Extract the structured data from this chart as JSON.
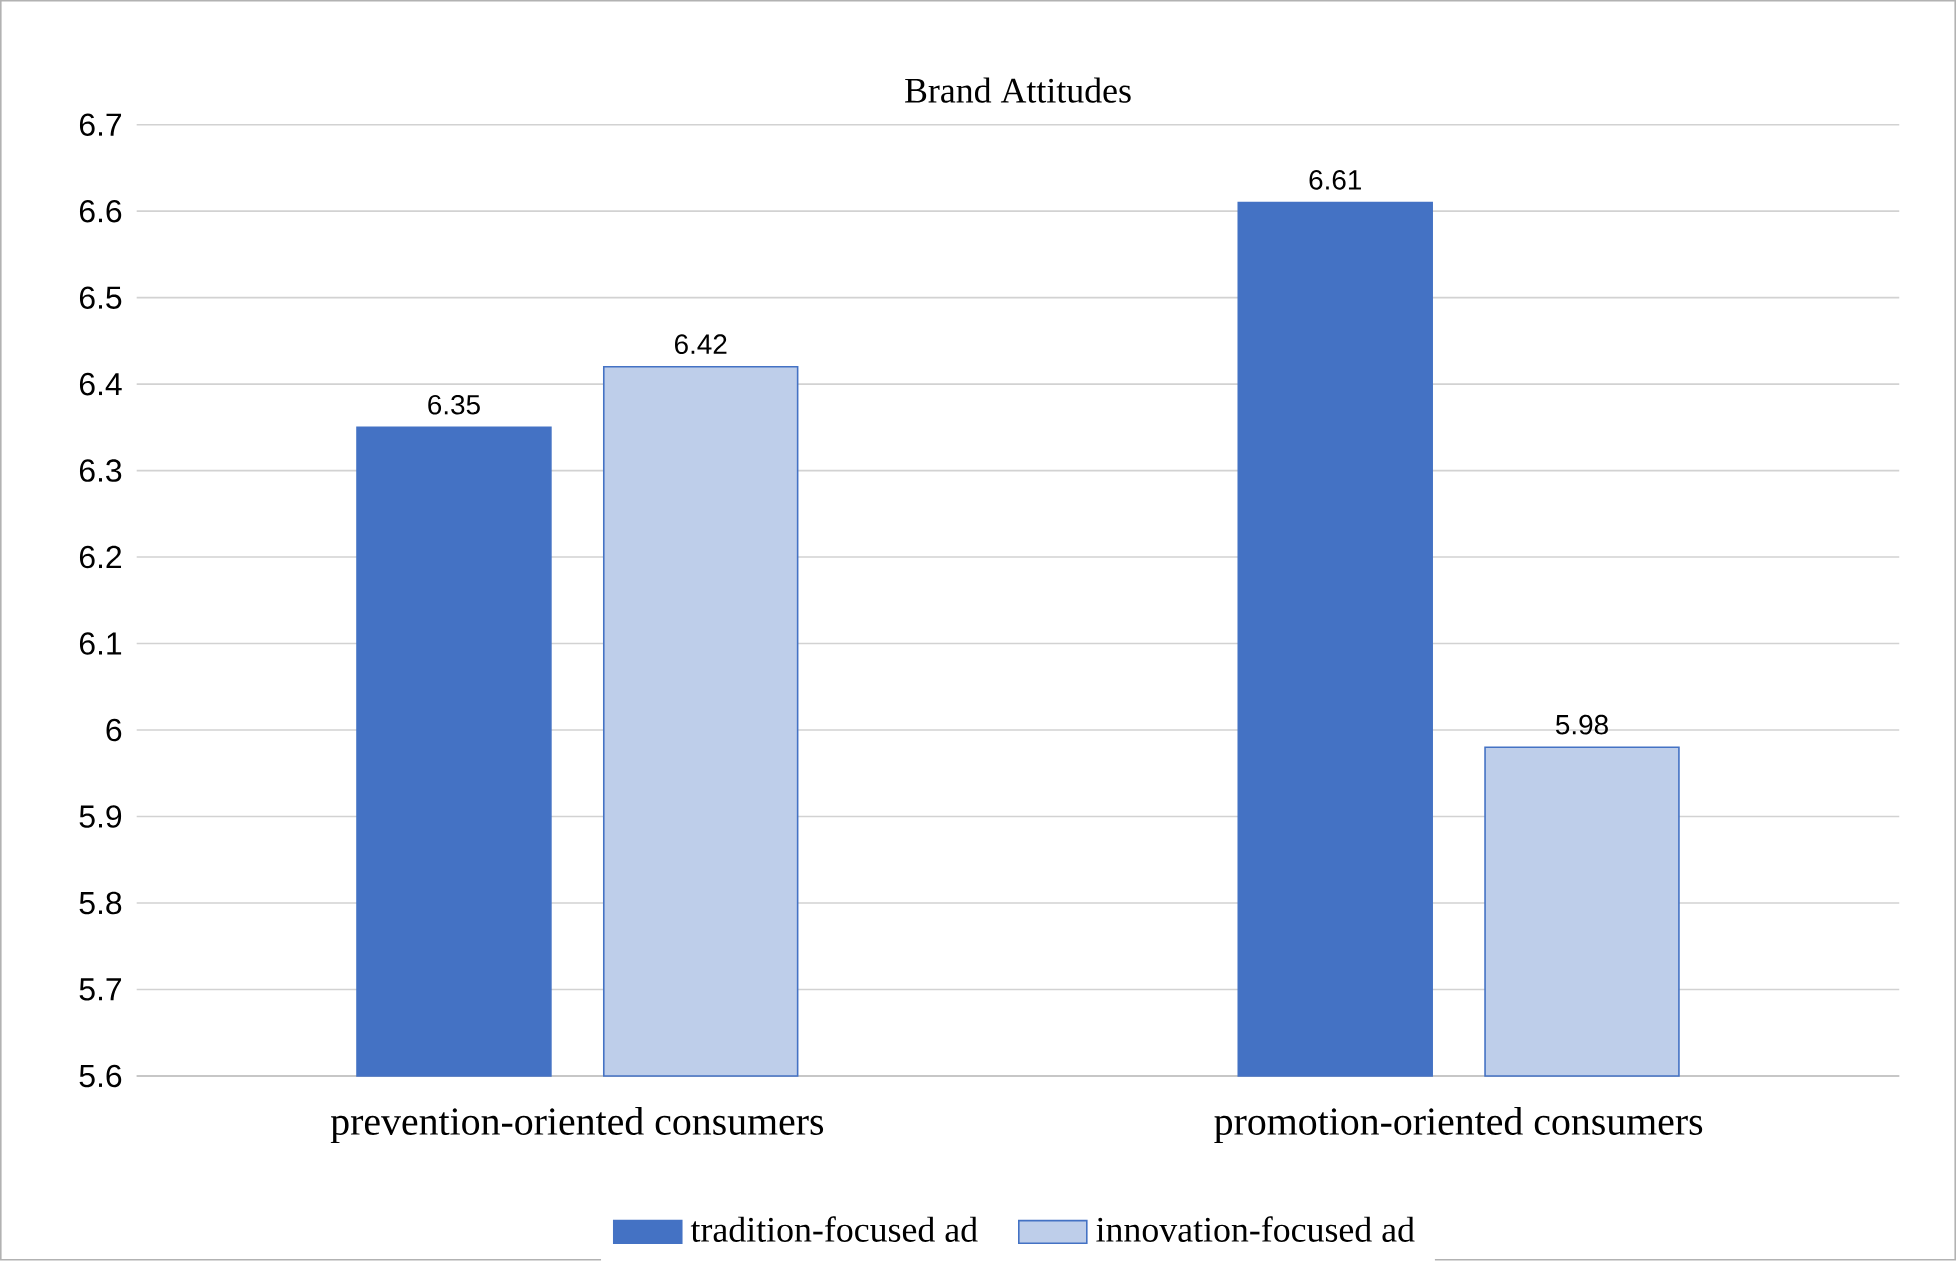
{
  "chart_data": {
    "type": "bar",
    "title": "Brand Attitudes",
    "categories": [
      "prevention-oriented consumers",
      "promotion-oriented consumers"
    ],
    "series": [
      {
        "name": "tradition-focused ad",
        "color": "#4472c4",
        "values": [
          6.35,
          6.61
        ]
      },
      {
        "name": "innovation-focused ad",
        "color": "#4472c4",
        "values": [
          6.42,
          5.98
        ]
      }
    ],
    "ylim": [
      5.6,
      6.7
    ],
    "yticks": [
      5.6,
      5.7,
      5.8,
      5.9,
      6,
      6.1,
      6.2,
      6.3,
      6.4,
      6.5,
      6.6,
      6.7
    ],
    "grid": "y",
    "legend": "bottom",
    "data_labels": true
  }
}
